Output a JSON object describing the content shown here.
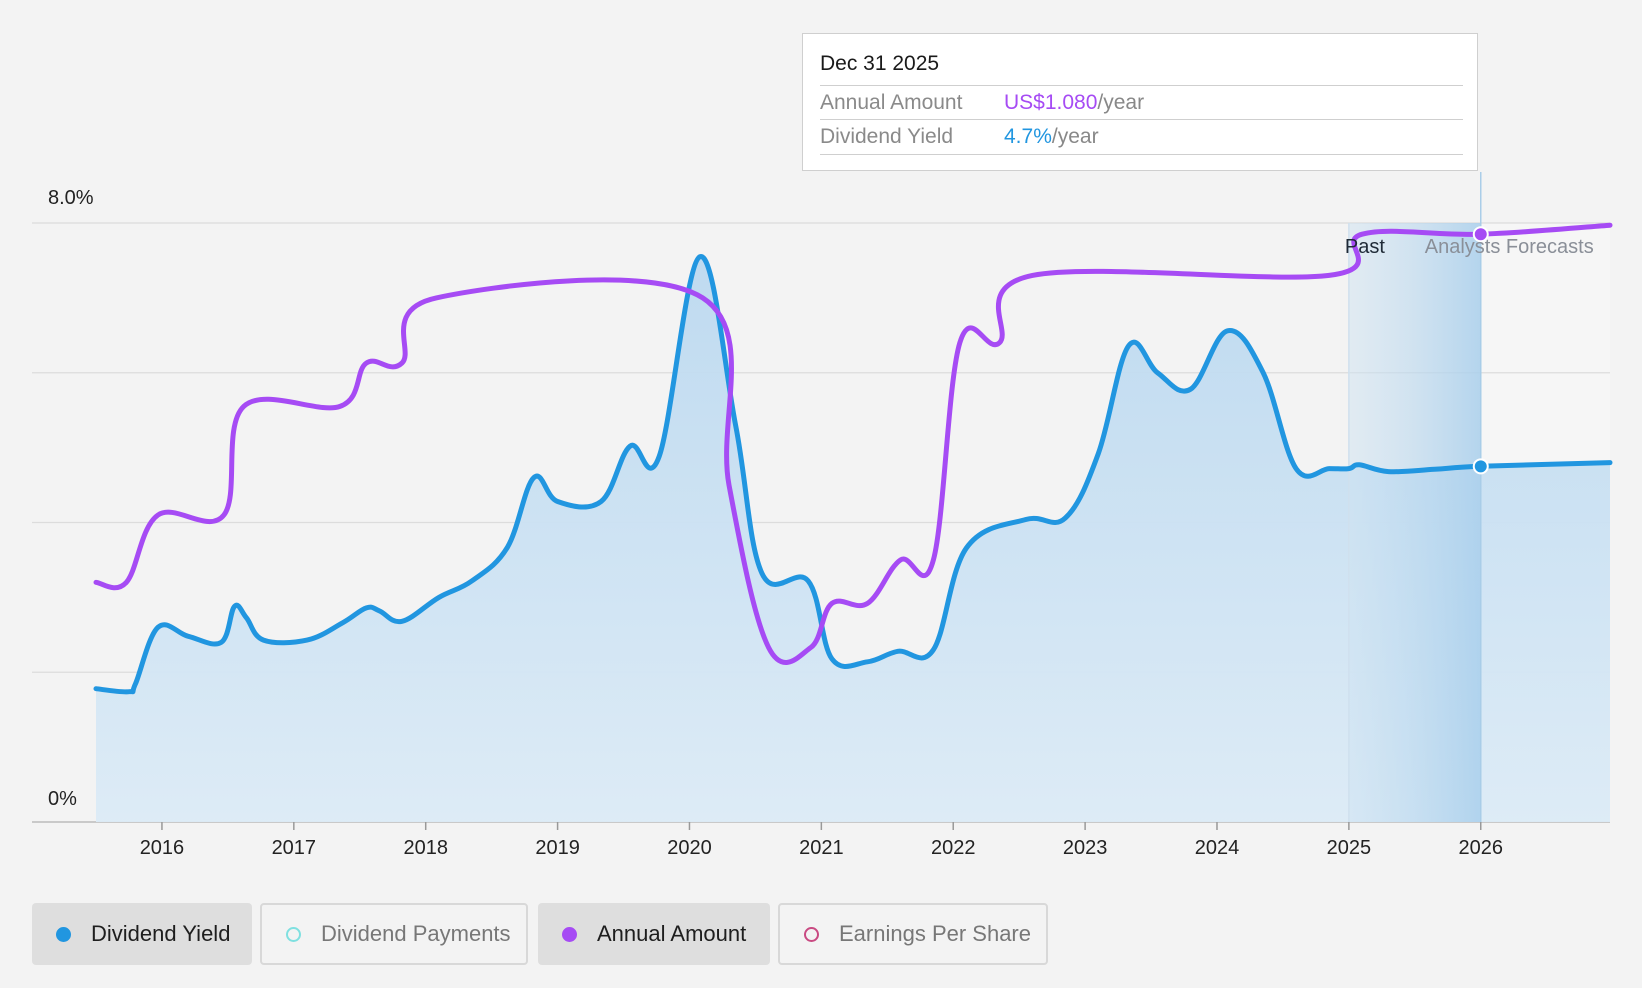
{
  "tooltip": {
    "date": "Dec 31 2025",
    "rows": [
      {
        "label": "Annual Amount",
        "value": "US$1.080",
        "unit": "/year",
        "color": "#a64bf4"
      },
      {
        "label": "Dividend Yield",
        "value": "4.7%",
        "unit": "/year",
        "color": "#2196e0"
      }
    ]
  },
  "legend": [
    {
      "label": "Dividend Yield",
      "active": true,
      "color": "#2196e0",
      "filled": true
    },
    {
      "label": "Dividend Payments",
      "active": false,
      "color": "#7fe0e0",
      "filled": false
    },
    {
      "label": "Annual Amount",
      "active": true,
      "color": "#a64bf4",
      "filled": true
    },
    {
      "label": "Earnings Per Share",
      "active": false,
      "color": "#c94a82",
      "filled": false
    }
  ],
  "chart_data": {
    "type": "line",
    "y_axis": {
      "top_label": "8.0%",
      "bottom_label": "0%",
      "ylim": [
        0,
        8.0
      ],
      "gridlines": [
        0,
        2,
        4,
        6,
        8
      ]
    },
    "x_ticks": [
      "2016",
      "2017",
      "2018",
      "2019",
      "2020",
      "2021",
      "2022",
      "2023",
      "2024",
      "2025",
      "2026"
    ],
    "xlim": [
      2015.5,
      2026.98
    ],
    "past_label": "Past",
    "forecast_label": "Analysts Forecasts",
    "past_boundary": 2025.0,
    "forecast_start": 2026.0,
    "marker_x": 2026.0,
    "series": [
      {
        "name": "Dividend Yield",
        "color": "#2196e0",
        "area": true,
        "points": [
          [
            2015.5,
            1.78
          ],
          [
            2015.75,
            1.74
          ],
          [
            2015.8,
            1.85
          ],
          [
            2015.97,
            2.6
          ],
          [
            2016.2,
            2.48
          ],
          [
            2016.45,
            2.4
          ],
          [
            2016.55,
            2.88
          ],
          [
            2016.64,
            2.73
          ],
          [
            2016.77,
            2.43
          ],
          [
            2017.1,
            2.43
          ],
          [
            2017.37,
            2.66
          ],
          [
            2017.55,
            2.86
          ],
          [
            2017.65,
            2.82
          ],
          [
            2017.82,
            2.68
          ],
          [
            2018.1,
            3.0
          ],
          [
            2018.35,
            3.22
          ],
          [
            2018.62,
            3.67
          ],
          [
            2018.82,
            4.6
          ],
          [
            2019.0,
            4.28
          ],
          [
            2019.33,
            4.28
          ],
          [
            2019.55,
            5.02
          ],
          [
            2019.77,
            4.88
          ],
          [
            2020.08,
            7.55
          ],
          [
            2020.35,
            5.3
          ],
          [
            2020.55,
            3.32
          ],
          [
            2020.9,
            3.22
          ],
          [
            2021.08,
            2.18
          ],
          [
            2021.35,
            2.14
          ],
          [
            2021.58,
            2.28
          ],
          [
            2021.85,
            2.3
          ],
          [
            2022.1,
            3.66
          ],
          [
            2022.55,
            4.04
          ],
          [
            2022.85,
            4.06
          ],
          [
            2023.1,
            4.92
          ],
          [
            2023.33,
            6.36
          ],
          [
            2023.55,
            6.0
          ],
          [
            2023.8,
            5.78
          ],
          [
            2024.08,
            6.56
          ],
          [
            2024.35,
            6.0
          ],
          [
            2024.6,
            4.72
          ],
          [
            2024.85,
            4.72
          ],
          [
            2025.0,
            4.72
          ],
          [
            2025.08,
            4.77
          ],
          [
            2025.3,
            4.68
          ],
          [
            2025.65,
            4.71
          ],
          [
            2026.0,
            4.75
          ],
          [
            2026.98,
            4.8
          ]
        ]
      },
      {
        "name": "Annual Amount",
        "color": "#a64bf4",
        "area": false,
        "points": [
          [
            2015.5,
            3.2
          ],
          [
            2015.73,
            3.2
          ],
          [
            2015.97,
            4.1
          ],
          [
            2016.47,
            4.1
          ],
          [
            2016.62,
            5.55
          ],
          [
            2017.35,
            5.55
          ],
          [
            2017.55,
            6.13
          ],
          [
            2017.82,
            6.13
          ],
          [
            2018.08,
            7.0
          ],
          [
            2020.1,
            7.0
          ],
          [
            2020.3,
            4.5
          ],
          [
            2020.6,
            2.33
          ],
          [
            2020.92,
            2.33
          ],
          [
            2021.08,
            2.92
          ],
          [
            2021.35,
            2.92
          ],
          [
            2021.6,
            3.5
          ],
          [
            2021.85,
            3.5
          ],
          [
            2022.05,
            6.4
          ],
          [
            2022.35,
            6.4
          ],
          [
            2022.6,
            7.3
          ],
          [
            2024.85,
            7.3
          ],
          [
            2025.1,
            7.85
          ],
          [
            2026.0,
            7.85
          ],
          [
            2026.98,
            7.97
          ]
        ]
      }
    ]
  }
}
